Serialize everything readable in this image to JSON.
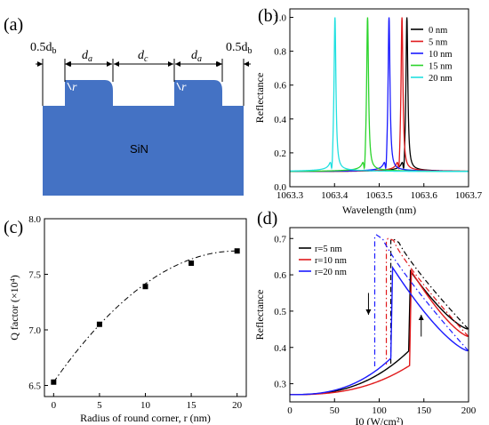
{
  "panels": {
    "a": {
      "label": "(a)",
      "dims": {
        "edge": "0.5d",
        "edge_sub": "b",
        "a": "d",
        "a_sub": "a",
        "c": "d",
        "c_sub": "c"
      },
      "corner": "r",
      "material": "SiN",
      "colors": {
        "material": "#4472c4"
      }
    },
    "b": {
      "label": "(b)"
    },
    "c": {
      "label": "(c)"
    },
    "d": {
      "label": "(d)"
    }
  },
  "chart_data": [
    {
      "id": "b",
      "type": "line",
      "xlabel": "Wavelength (nm)",
      "ylabel": "Reflectance",
      "xlim": [
        1063.3,
        1063.7
      ],
      "ylim": [
        0.0,
        1.05
      ],
      "xticks": [
        "1063.3",
        "1063.4",
        "1063.5",
        "1063.6",
        "1063.7"
      ],
      "yticks": [
        "0.0",
        "0.2",
        "0.4",
        "0.6",
        "0.8",
        "1.0"
      ],
      "legend_position": "top-right",
      "series": [
        {
          "name": "0 nm",
          "color": "#000000",
          "peak": 1063.562,
          "dip": 1063.556
        },
        {
          "name": "5 nm",
          "color": "#e0191b",
          "peak": 1063.551,
          "dip": 1063.545
        },
        {
          "name": "10 nm",
          "color": "#1a1aff",
          "peak": 1063.522,
          "dip": 1063.515
        },
        {
          "name": "15 nm",
          "color": "#2bd42b",
          "peak": 1063.474,
          "dip": 1063.467
        },
        {
          "name": "20 nm",
          "color": "#22e0e0",
          "peak": 1063.401,
          "dip": 1063.394
        }
      ]
    },
    {
      "id": "c",
      "type": "scatter",
      "xlabel": "Radius of round corner, r (nm)",
      "ylabel": "Q factor (×10⁴)",
      "xlim": [
        -1,
        21
      ],
      "ylim": [
        6.4,
        8.0
      ],
      "xticks": [
        "0",
        "5",
        "10",
        "15",
        "20"
      ],
      "yticks": [
        "6.5",
        "7.0",
        "7.5",
        "8.0"
      ],
      "x": [
        0,
        5,
        10,
        15,
        20
      ],
      "y": [
        6.53,
        7.05,
        7.39,
        7.6,
        7.71
      ],
      "fit": "dash-dot"
    },
    {
      "id": "d",
      "type": "line",
      "xlabel": "I0 (W/cm²)",
      "ylabel": "Reflectance",
      "xlim": [
        0,
        200
      ],
      "ylim": [
        0.25,
        0.73
      ],
      "xticks": [
        "0",
        "50",
        "100",
        "150",
        "200"
      ],
      "yticks": [
        "0.3",
        "0.4",
        "0.5",
        "0.6",
        "0.7"
      ],
      "legend_position": "top-left",
      "series": [
        {
          "name": "r=5 nm",
          "color": "#000000",
          "peak_x": 135,
          "peak_y": 0.61,
          "jump_down_x": 113,
          "jump_up_from": 0.39,
          "end_y": 0.45
        },
        {
          "name": "r=10 nm",
          "color": "#e0191b",
          "peak_x": 136,
          "peak_y": 0.61,
          "jump_down_x": 108,
          "jump_up_from": 0.35,
          "end_y": 0.43
        },
        {
          "name": "r=20 nm",
          "color": "#1a1aff",
          "peak_x": 115,
          "peak_y": 0.62,
          "jump_down_x": 95,
          "jump_up_from": 0.37,
          "end_y": 0.39
        }
      ]
    }
  ]
}
